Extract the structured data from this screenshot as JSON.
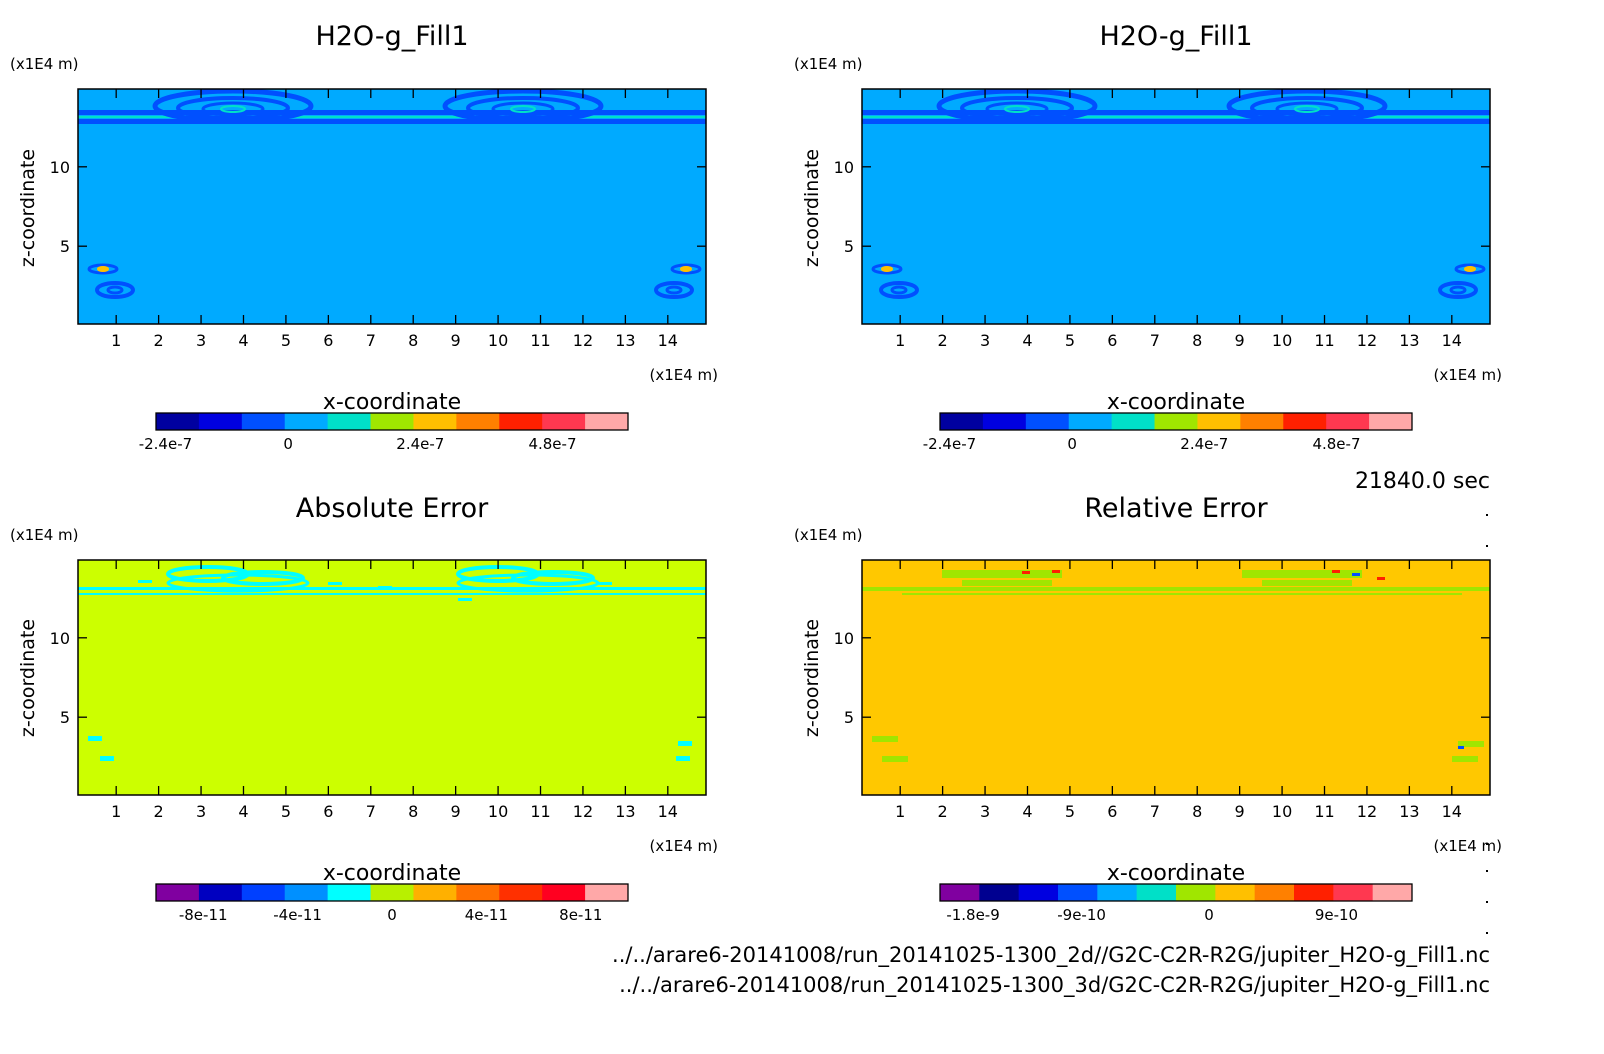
{
  "timestamp": "21840.0 sec",
  "files": [
    "../../arare6-20141008/run_20141025-1300_2d//G2C-C2R-R2G/jupiter_H2O-g_Fill1.nc",
    "../../arare6-20141008/run_20141025-1300_3d/G2C-C2R-R2G/jupiter_H2O-g_Fill1.nc"
  ],
  "chart_data": [
    {
      "type": "heatmap",
      "title": "H2O-g_Fill1",
      "xlabel": "x-coordinate",
      "ylabel": "z-coordinate",
      "x_unit": "(x1E4 m)",
      "y_unit": "(x1E4 m)",
      "xlim": [
        0.1,
        14.9
      ],
      "ylim": [
        0.1,
        14.9
      ],
      "x_ticks": [
        "1",
        "2",
        "3",
        "4",
        "5",
        "6",
        "7",
        "8",
        "9",
        "10",
        "11",
        "12",
        "13",
        "14"
      ],
      "y_ticks": [
        "5",
        "10"
      ],
      "background_color": "#00aaff",
      "colorbar": {
        "colors": [
          "#0000a0",
          "#0000e0",
          "#0050ff",
          "#00aaff",
          "#00e0c8",
          "#a0e600",
          "#ffc000",
          "#ff8000",
          "#ff2000",
          "#ff3850",
          "#ffa8a8"
        ],
        "labels": [
          "-2.4e-7",
          "0",
          "2.4e-7",
          "4.8e-7"
        ]
      }
    },
    {
      "type": "heatmap",
      "title": "H2O-g_Fill1",
      "xlabel": "x-coordinate",
      "ylabel": "z-coordinate",
      "x_unit": "(x1E4 m)",
      "y_unit": "(x1E4 m)",
      "xlim": [
        0.1,
        14.9
      ],
      "ylim": [
        0.1,
        14.9
      ],
      "x_ticks": [
        "1",
        "2",
        "3",
        "4",
        "5",
        "6",
        "7",
        "8",
        "9",
        "10",
        "11",
        "12",
        "13",
        "14"
      ],
      "y_ticks": [
        "5",
        "10"
      ],
      "background_color": "#00aaff",
      "colorbar": {
        "colors": [
          "#0000a0",
          "#0000e0",
          "#0050ff",
          "#00aaff",
          "#00e0c8",
          "#a0e600",
          "#ffc000",
          "#ff8000",
          "#ff2000",
          "#ff3850",
          "#ffa8a8"
        ],
        "labels": [
          "-2.4e-7",
          "0",
          "2.4e-7",
          "4.8e-7"
        ]
      }
    },
    {
      "type": "heatmap",
      "title": "Absolute Error",
      "xlabel": "x-coordinate",
      "ylabel": "z-coordinate",
      "x_unit": "(x1E4 m)",
      "y_unit": "(x1E4 m)",
      "xlim": [
        0.1,
        14.9
      ],
      "ylim": [
        0.1,
        14.9
      ],
      "x_ticks": [
        "1",
        "2",
        "3",
        "4",
        "5",
        "6",
        "7",
        "8",
        "9",
        "10",
        "11",
        "12",
        "13",
        "14"
      ],
      "y_ticks": [
        "5",
        "10"
      ],
      "background_color": "#ccff00",
      "colorbar": {
        "colors": [
          "#8000a0",
          "#0000c0",
          "#0040ff",
          "#0090ff",
          "#00ffff",
          "#b8f000",
          "#ffb000",
          "#ff7000",
          "#ff3000",
          "#ff0020",
          "#ffa8a8"
        ],
        "labels": [
          "-8e-11",
          "-4e-11",
          "0",
          "4e-11",
          "8e-11"
        ]
      }
    },
    {
      "type": "heatmap",
      "title": "Relative Error",
      "xlabel": "x-coordinate",
      "ylabel": "z-coordinate",
      "x_unit": "(x1E4 m)",
      "y_unit": "(x1E4 m)",
      "xlim": [
        0.1,
        14.9
      ],
      "ylim": [
        0.1,
        14.9
      ],
      "x_ticks": [
        "1",
        "2",
        "3",
        "4",
        "5",
        "6",
        "7",
        "8",
        "9",
        "10",
        "11",
        "12",
        "13",
        "14"
      ],
      "y_ticks": [
        "5",
        "10"
      ],
      "background_color": "#ffc800",
      "colorbar": {
        "colors": [
          "#8000a0",
          "#000090",
          "#0000e0",
          "#0050ff",
          "#00aaff",
          "#00e0c8",
          "#a0e600",
          "#ffc000",
          "#ff8000",
          "#ff2000",
          "#ff3850",
          "#ffa8a8"
        ],
        "labels": [
          "-1.8e-9",
          "-9e-10",
          "0",
          "9e-10"
        ]
      }
    }
  ]
}
